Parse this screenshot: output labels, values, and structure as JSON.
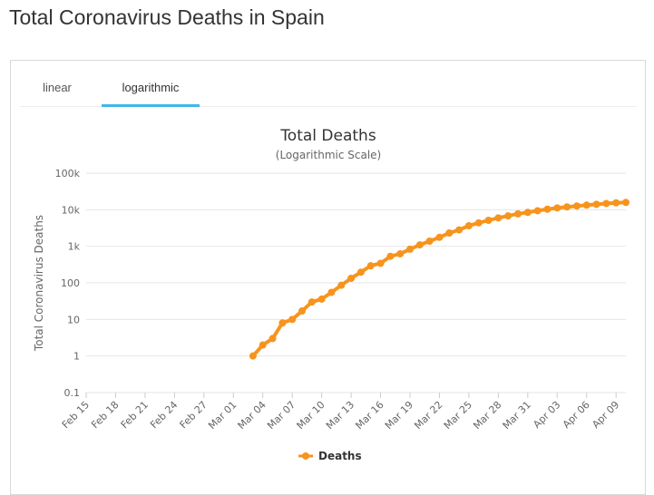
{
  "page": {
    "title": "Total Coronavirus Deaths in Spain"
  },
  "tabs": [
    {
      "label": "linear",
      "active": false
    },
    {
      "label": "logarithmic",
      "active": true
    }
  ],
  "colors": {
    "series": "#f7941d",
    "tab_active": "#3fb8e8",
    "grid": "#e6e6e6"
  },
  "chart_data": {
    "type": "line",
    "title": "Total Deaths",
    "subtitle": "(Logarithmic Scale)",
    "xlabel": "",
    "ylabel": "Total Coronavirus Deaths",
    "yscale": "log",
    "ylim": [
      0.1,
      100000
    ],
    "yticks": [
      "100k",
      "10k",
      "1k",
      "100",
      "10",
      "1",
      "0.1"
    ],
    "ytick_values": [
      100000,
      10000,
      1000,
      100,
      10,
      1,
      0.1
    ],
    "xticks": [
      "Feb 15",
      "Feb 18",
      "Feb 21",
      "Feb 24",
      "Feb 27",
      "Mar 01",
      "Mar 04",
      "Mar 07",
      "Mar 10",
      "Mar 13",
      "Mar 16",
      "Mar 19",
      "Mar 22",
      "Mar 25",
      "Mar 28",
      "Mar 31",
      "Apr 03",
      "Apr 06",
      "Apr 09"
    ],
    "grid": true,
    "legend": "bottom-center",
    "series": [
      {
        "name": "Deaths",
        "x": [
          "Mar 03",
          "Mar 04",
          "Mar 05",
          "Mar 06",
          "Mar 07",
          "Mar 08",
          "Mar 09",
          "Mar 10",
          "Mar 11",
          "Mar 12",
          "Mar 13",
          "Mar 14",
          "Mar 15",
          "Mar 16",
          "Mar 17",
          "Mar 18",
          "Mar 19",
          "Mar 20",
          "Mar 21",
          "Mar 22",
          "Mar 23",
          "Mar 24",
          "Mar 25",
          "Mar 26",
          "Mar 27",
          "Mar 28",
          "Mar 29",
          "Mar 30",
          "Mar 31",
          "Apr 01",
          "Apr 02",
          "Apr 03",
          "Apr 04",
          "Apr 05",
          "Apr 06",
          "Apr 07",
          "Apr 08",
          "Apr 09",
          "Apr 10"
        ],
        "values": [
          1,
          2,
          3,
          8,
          10,
          17,
          30,
          36,
          55,
          86,
          133,
          196,
          294,
          342,
          533,
          623,
          830,
          1093,
          1381,
          1756,
          2311,
          2808,
          3647,
          4365,
          5138,
          5982,
          6803,
          7716,
          8464,
          9387,
          10348,
          11198,
          11947,
          12641,
          13341,
          14045,
          14792,
          15447,
          15843
        ]
      }
    ]
  }
}
